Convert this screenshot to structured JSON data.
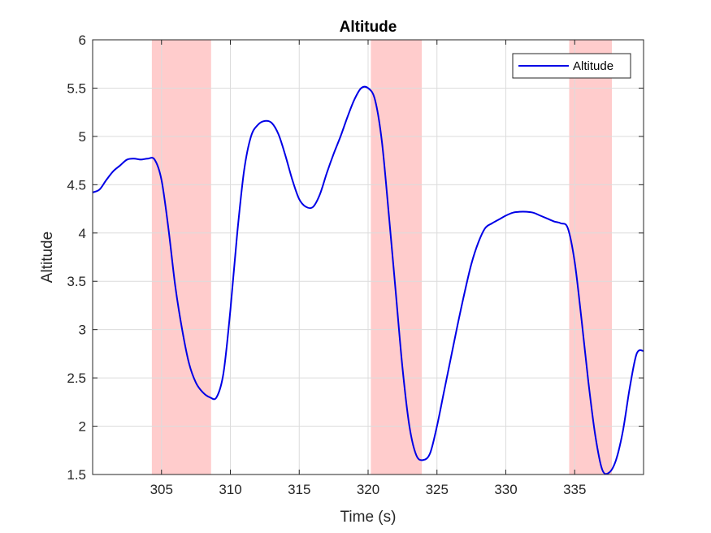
{
  "chart_data": {
    "type": "line",
    "title": "Altitude",
    "xlabel": "Time (s)",
    "ylabel": "Altitude",
    "xlim": [
      300,
      340
    ],
    "ylim": [
      1.5,
      6
    ],
    "xticks": [
      305,
      310,
      315,
      320,
      325,
      330,
      335
    ],
    "yticks": [
      1.5,
      2,
      2.5,
      3,
      3.5,
      4,
      4.5,
      5,
      5.5,
      6
    ],
    "grid": true,
    "legend_position": "top-right",
    "colors": {
      "line": "#0000e6",
      "shade": "#ffcccc",
      "grid": "#dcdcdc",
      "axis": "#262626"
    },
    "shaded_regions": [
      {
        "x_start": 304.3,
        "x_end": 308.6
      },
      {
        "x_start": 320.2,
        "x_end": 323.9
      },
      {
        "x_start": 334.6,
        "x_end": 337.7
      }
    ],
    "series": [
      {
        "name": "Altitude",
        "x": [
          300.0,
          300.5,
          301.0,
          301.5,
          302.0,
          302.5,
          303.0,
          303.5,
          304.0,
          304.5,
          305.0,
          305.5,
          306.0,
          306.5,
          307.0,
          307.5,
          308.0,
          308.5,
          309.0,
          309.5,
          310.0,
          310.5,
          311.0,
          311.5,
          312.0,
          312.5,
          313.0,
          313.5,
          314.0,
          314.5,
          315.0,
          315.5,
          316.0,
          316.5,
          317.0,
          317.5,
          318.0,
          318.5,
          319.0,
          319.5,
          320.0,
          320.5,
          321.0,
          321.5,
          322.0,
          322.5,
          323.0,
          323.5,
          324.0,
          324.5,
          325.0,
          325.5,
          326.0,
          326.5,
          327.0,
          327.5,
          328.0,
          328.5,
          329.0,
          329.5,
          330.0,
          330.5,
          331.0,
          331.5,
          332.0,
          332.5,
          333.0,
          333.5,
          334.0,
          334.5,
          335.0,
          335.5,
          336.0,
          336.5,
          337.0,
          337.5,
          338.0,
          338.5,
          339.0,
          339.5,
          340.0
        ],
        "y": [
          4.42,
          4.45,
          4.55,
          4.64,
          4.7,
          4.76,
          4.77,
          4.76,
          4.77,
          4.76,
          4.55,
          4.05,
          3.45,
          3.0,
          2.65,
          2.45,
          2.35,
          2.3,
          2.3,
          2.55,
          3.2,
          4.0,
          4.65,
          5.0,
          5.12,
          5.16,
          5.14,
          5.02,
          4.8,
          4.55,
          4.35,
          4.27,
          4.27,
          4.4,
          4.62,
          4.82,
          5.0,
          5.2,
          5.38,
          5.5,
          5.5,
          5.38,
          4.95,
          4.2,
          3.4,
          2.6,
          2.0,
          1.7,
          1.65,
          1.72,
          2.0,
          2.35,
          2.7,
          3.05,
          3.38,
          3.68,
          3.9,
          4.05,
          4.1,
          4.14,
          4.18,
          4.21,
          4.22,
          4.22,
          4.21,
          4.18,
          4.15,
          4.12,
          4.1,
          4.05,
          3.7,
          3.1,
          2.45,
          1.9,
          1.55,
          1.52,
          1.65,
          1.95,
          2.4,
          2.75,
          2.78
        ]
      }
    ]
  }
}
